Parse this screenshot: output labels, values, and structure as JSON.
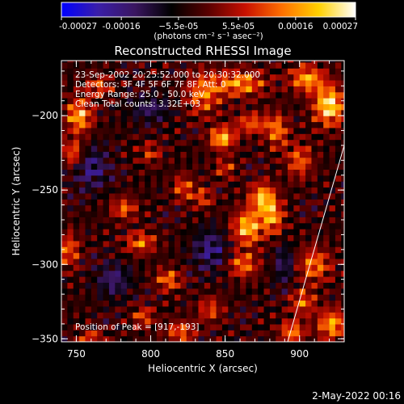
{
  "chart_data": {
    "type": "heatmap",
    "title": "Reconstructed RHESSI Image",
    "xlabel": "Heliocentric X (arcsec)",
    "ylabel": "Heliocentric Y (arcsec)",
    "xlim": [
      740,
      930
    ],
    "ylim": [
      -352,
      -163
    ],
    "xticks": [
      750,
      800,
      850,
      900
    ],
    "yticks": [
      -200,
      -250,
      -300,
      -350
    ],
    "grid": false,
    "colorbar": {
      "position": "top",
      "min": -0.00027,
      "max": 0.00027,
      "tick_values": [
        -0.00027,
        -0.00016,
        -5.5e-05,
        5.5e-05,
        0.00016,
        0.00027
      ],
      "tick_labels": [
        "-0.00027",
        "-0.00016",
        "−5.5e-05",
        "5.5e-05",
        "0.00016",
        "0.00027"
      ],
      "unit_label": "(photons cm⁻² s⁻¹ asec⁻²)",
      "colormap": [
        "#0000ff",
        "#3a1ea8",
        "#3a1660",
        "#000000",
        "#5a0000",
        "#c81000",
        "#ff7000",
        "#ffd000",
        "#ffffff"
      ]
    },
    "annotations": {
      "time": "23-Sep-2002 20:25:52.000 to 20:30:32.000",
      "detectors": "Detectors: 3F 4F 5F 6F 7F 8F, Att: 0",
      "energy": "Energy Range: 25.0 - 50.0 keV",
      "clean": "Clean     Total counts: 3.32E+03",
      "peak": "Position of Peak = [917,-193]"
    },
    "limb_line": {
      "x": [
        892,
        930
      ],
      "y": [
        -352,
        -220
      ]
    },
    "sources": [
      {
        "x": 920,
        "y": -193,
        "amp": 1.0,
        "sx": 7,
        "sy": 9
      },
      {
        "x": 905,
        "y": -175,
        "amp": 0.75,
        "sx": 8,
        "sy": 6
      },
      {
        "x": 860,
        "y": -178,
        "amp": 0.7,
        "sx": 12,
        "sy": 6
      },
      {
        "x": 835,
        "y": -185,
        "amp": 0.6,
        "sx": 8,
        "sy": 10
      },
      {
        "x": 848,
        "y": -215,
        "amp": 0.85,
        "sx": 6,
        "sy": 5
      },
      {
        "x": 868,
        "y": -205,
        "amp": 0.55,
        "sx": 8,
        "sy": 5
      },
      {
        "x": 885,
        "y": -210,
        "amp": 0.6,
        "sx": 5,
        "sy": 8
      },
      {
        "x": 900,
        "y": -230,
        "amp": 0.55,
        "sx": 6,
        "sy": 8
      },
      {
        "x": 875,
        "y": -255,
        "amp": 0.8,
        "sx": 6,
        "sy": 7
      },
      {
        "x": 865,
        "y": -275,
        "amp": 0.85,
        "sx": 7,
        "sy": 8
      },
      {
        "x": 882,
        "y": -268,
        "amp": 0.7,
        "sx": 5,
        "sy": 8
      },
      {
        "x": 862,
        "y": -300,
        "amp": 0.6,
        "sx": 7,
        "sy": 6
      },
      {
        "x": 910,
        "y": -300,
        "amp": 0.6,
        "sx": 8,
        "sy": 8
      },
      {
        "x": 902,
        "y": -325,
        "amp": 0.55,
        "sx": 6,
        "sy": 6
      },
      {
        "x": 922,
        "y": -340,
        "amp": 0.75,
        "sx": 7,
        "sy": 7
      },
      {
        "x": 895,
        "y": -345,
        "amp": 0.65,
        "sx": 6,
        "sy": 5
      },
      {
        "x": 752,
        "y": -200,
        "amp": 0.8,
        "sx": 6,
        "sy": 8
      },
      {
        "x": 748,
        "y": -225,
        "amp": 0.6,
        "sx": 5,
        "sy": 6
      },
      {
        "x": 765,
        "y": -180,
        "amp": 0.5,
        "sx": 6,
        "sy": 5
      },
      {
        "x": 745,
        "y": -290,
        "amp": 0.55,
        "sx": 5,
        "sy": 8
      },
      {
        "x": 782,
        "y": -262,
        "amp": 0.55,
        "sx": 6,
        "sy": 5
      },
      {
        "x": 793,
        "y": -285,
        "amp": 0.6,
        "sx": 7,
        "sy": 5
      },
      {
        "x": 812,
        "y": -310,
        "amp": 0.6,
        "sx": 6,
        "sy": 5
      },
      {
        "x": 795,
        "y": -335,
        "amp": 0.5,
        "sx": 5,
        "sy": 5
      },
      {
        "x": 820,
        "y": -345,
        "amp": 0.55,
        "sx": 7,
        "sy": 5
      },
      {
        "x": 840,
        "y": -330,
        "amp": 0.45,
        "sx": 6,
        "sy": 6
      },
      {
        "x": 822,
        "y": -248,
        "amp": 0.5,
        "sx": 5,
        "sy": 6
      },
      {
        "x": 835,
        "y": -255,
        "amp": 0.45,
        "sx": 5,
        "sy": 5
      },
      {
        "x": 800,
        "y": -225,
        "amp": 0.4,
        "sx": 5,
        "sy": 5
      },
      {
        "x": 850,
        "y": -235,
        "amp": 0.4,
        "sx": 5,
        "sy": 5
      },
      {
        "x": 760,
        "y": -350,
        "amp": 0.5,
        "sx": 6,
        "sy": 4
      },
      {
        "x": 775,
        "y": -310,
        "amp": -0.4,
        "sx": 8,
        "sy": 8
      },
      {
        "x": 760,
        "y": -235,
        "amp": -0.45,
        "sx": 8,
        "sy": 10
      },
      {
        "x": 840,
        "y": -290,
        "amp": -0.45,
        "sx": 8,
        "sy": 10
      },
      {
        "x": 800,
        "y": -195,
        "amp": -0.35,
        "sx": 10,
        "sy": 6
      },
      {
        "x": 890,
        "y": -300,
        "amp": -0.35,
        "sx": 5,
        "sy": 10
      }
    ]
  },
  "footer": {
    "date": "2-May-2022 00:16"
  }
}
